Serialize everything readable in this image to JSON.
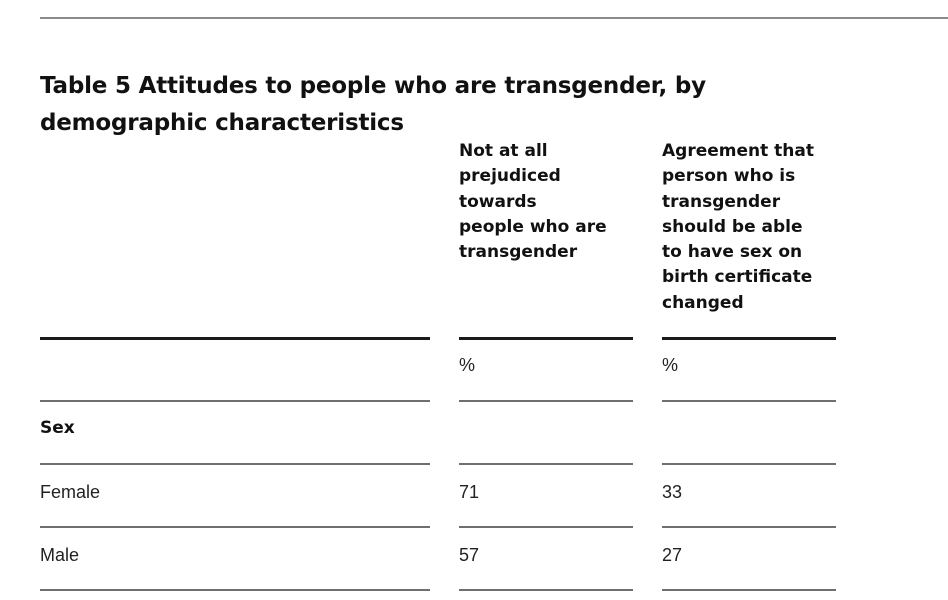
{
  "table": {
    "title": "Table 5 Attitudes to people who are transgender, by demographic characteristics",
    "columns": [
      "Not at all\nprejudiced\ntowards\npeople who are\ntransgender",
      "Agreement that\nperson who is\ntransgender\nshould be able\nto have sex on\nbirth certificate\nchanged"
    ],
    "unit_row": [
      "%",
      "%"
    ],
    "section": "Sex",
    "rows": [
      {
        "label": "Female",
        "values": [
          "71",
          "33"
        ]
      },
      {
        "label": "Male",
        "values": [
          "57",
          "27"
        ]
      }
    ]
  }
}
